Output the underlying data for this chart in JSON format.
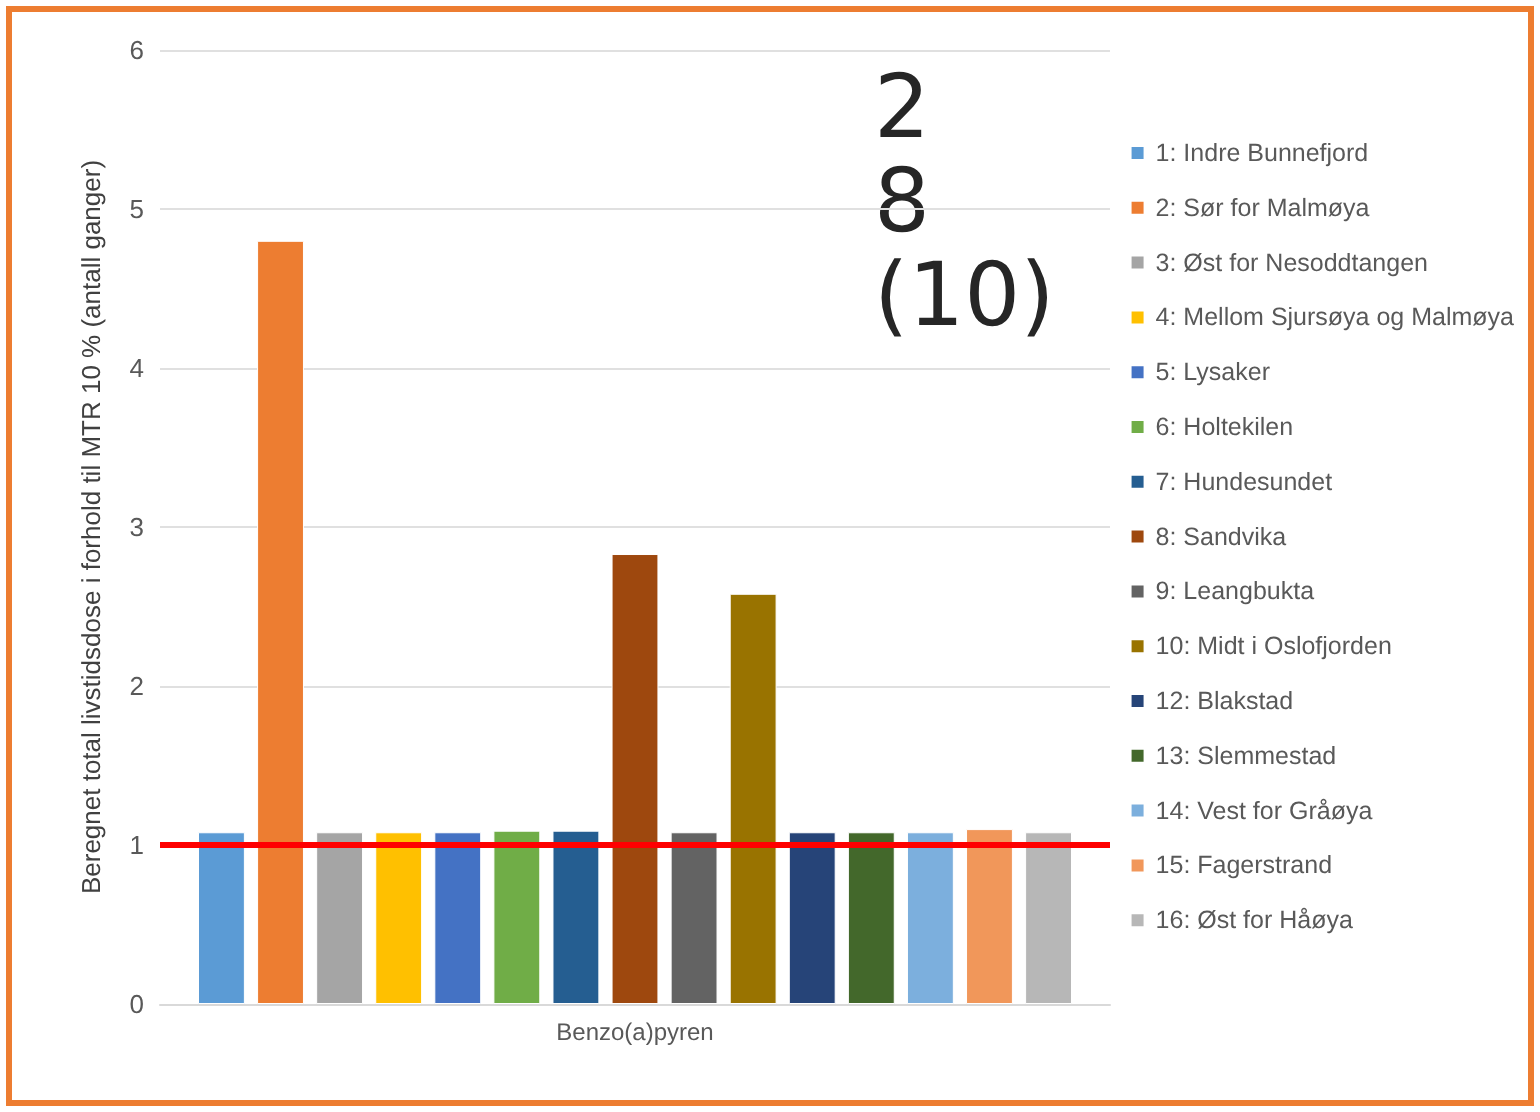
{
  "chart_data": {
    "type": "bar",
    "ylabel": "Beregnet total livstidsdose i forhold til MTR 10 % (antall ganger)",
    "categories": [
      "Benzo(a)pyren"
    ],
    "ylim": [
      0,
      6
    ],
    "yticks": [
      0,
      1,
      2,
      3,
      4,
      5,
      6
    ],
    "grid": "y",
    "legend": "right",
    "annotations": [
      "2",
      "8",
      "(10)"
    ],
    "ref_lines": [
      {
        "axis": "y",
        "value": 1,
        "color": "#ff0000"
      }
    ],
    "series": [
      {
        "name": "1: Indre Bunnefjord",
        "color": "#5b9bd5",
        "values": [
          1.08
        ]
      },
      {
        "name": "2: Sør for Malmøya",
        "color": "#ed7d31",
        "values": [
          4.8
        ]
      },
      {
        "name": "3: Øst for Nesoddtangen",
        "color": "#a5a5a5",
        "values": [
          1.08
        ]
      },
      {
        "name": "4: Mellom Sjursøya og Malmøya",
        "color": "#ffc000",
        "values": [
          1.08
        ]
      },
      {
        "name": "5: Lysaker",
        "color": "#4472c4",
        "values": [
          1.08
        ]
      },
      {
        "name": "6: Holtekilen",
        "color": "#70ad47",
        "values": [
          1.09
        ]
      },
      {
        "name": "7: Hundesundet",
        "color": "#255e91",
        "values": [
          1.09
        ]
      },
      {
        "name": "8: Sandvika",
        "color": "#9e480e",
        "values": [
          2.83
        ]
      },
      {
        "name": "9: Leangbukta",
        "color": "#636363",
        "values": [
          1.08
        ]
      },
      {
        "name": "10: Midt i Oslofjorden",
        "color": "#997300",
        "values": [
          2.58
        ]
      },
      {
        "name": "12: Blakstad",
        "color": "#264478",
        "values": [
          1.08
        ]
      },
      {
        "name": "13: Slemmestad",
        "color": "#43682b",
        "values": [
          1.08
        ]
      },
      {
        "name": "14: Vest for Gråøya",
        "color": "#7cafdd",
        "values": [
          1.08
        ]
      },
      {
        "name": "15: Fagerstrand",
        "color": "#f1975a",
        "values": [
          1.1
        ]
      },
      {
        "name": "16: Øst for Håøya",
        "color": "#b7b7b7",
        "values": [
          1.08
        ]
      }
    ]
  }
}
